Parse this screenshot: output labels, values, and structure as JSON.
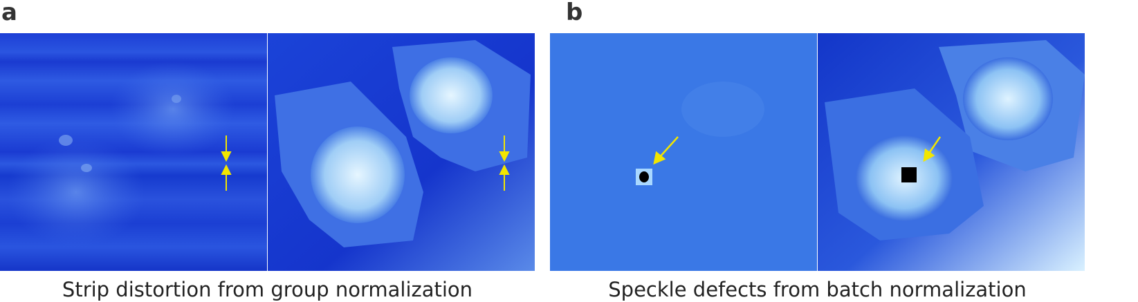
{
  "panels": [
    {
      "letter": "a",
      "caption": "Strip distortion from group normalization"
    },
    {
      "letter": "b",
      "caption": "Speckle defects from batch normalization"
    }
  ],
  "colors": {
    "arrow": "#f2e600",
    "deep_blue": "#0a2ad0",
    "cell_light": "#c8ecff"
  }
}
